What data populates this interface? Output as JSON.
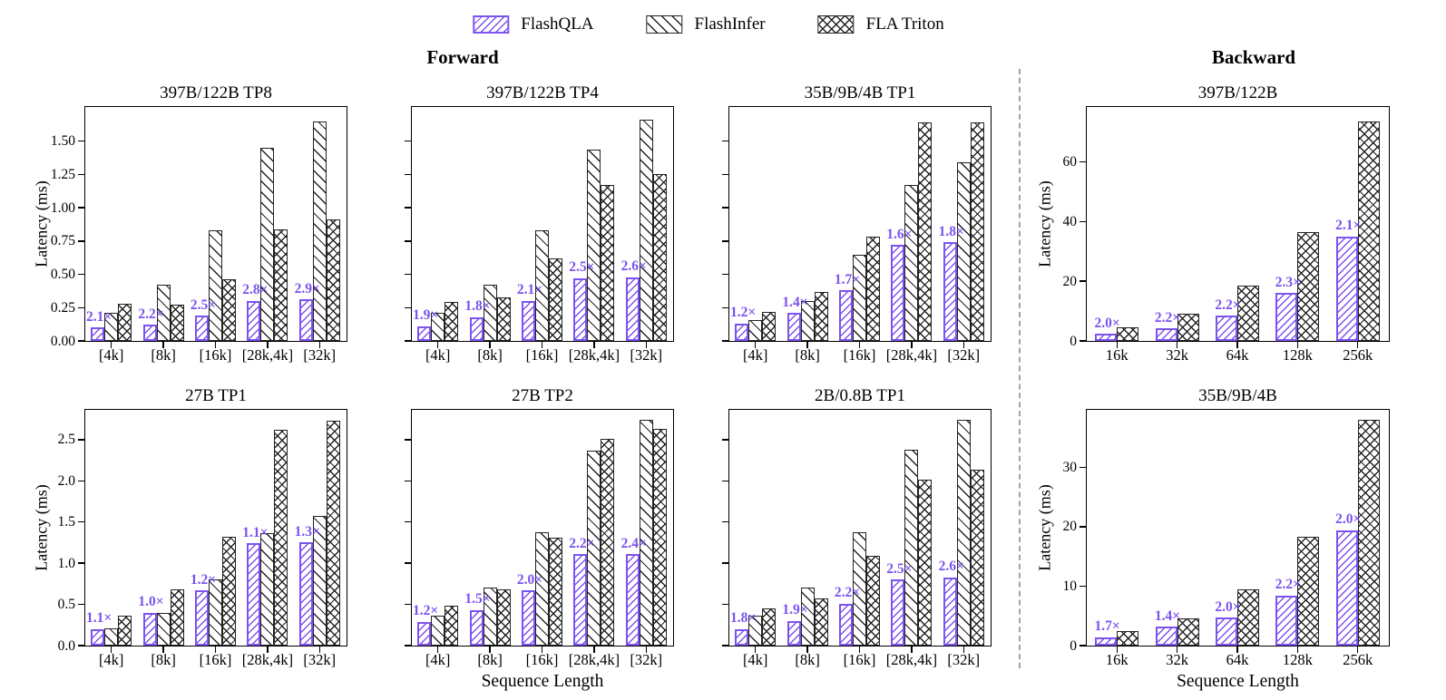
{
  "colors": {
    "accent": "#7C52F0",
    "hatch_black": "#222222",
    "divider": "#A3A3A3"
  },
  "legend": {
    "items": [
      {
        "label": "FlashQLA",
        "hatch": "diagonal-forward",
        "hatch_class": "hq"
      },
      {
        "label": "FlashInfer",
        "hatch": "diagonal-back",
        "hatch_class": "hi"
      },
      {
        "label": "FLA Triton",
        "hatch": "crosshatch",
        "hatch_class": "ht"
      }
    ]
  },
  "sections": {
    "forward_label": "Forward",
    "backward_label": "Backward"
  },
  "axis": {
    "ylabel": "Latency (ms)",
    "xlabel": "Sequence Length"
  },
  "chart_data": [
    {
      "id": "fwd-397b-tp8",
      "title": "397B/122B TP8",
      "section": "forward",
      "row": 0,
      "col": 0,
      "type": "bar",
      "categories": [
        "[4k]",
        "[8k]",
        "[16k]",
        "[28k,4k]",
        "[32k]"
      ],
      "series": [
        {
          "name": "FlashQLA",
          "values": [
            0.1,
            0.12,
            0.19,
            0.3,
            0.31
          ]
        },
        {
          "name": "FlashInfer",
          "values": [
            0.21,
            0.42,
            0.83,
            1.45,
            1.65
          ]
        },
        {
          "name": "FLA Triton",
          "values": [
            0.28,
            0.27,
            0.46,
            0.84,
            0.91
          ]
        }
      ],
      "annotations": [
        "2.1×",
        "2.2×",
        "2.5×",
        "2.8×",
        "2.9×"
      ],
      "ylim": [
        0,
        1.75
      ],
      "yticks": [
        0,
        0.25,
        0.5,
        0.75,
        1.0,
        1.25,
        1.5
      ],
      "ytick_labels": [
        "0.00",
        "0.25",
        "0.50",
        "0.75",
        "1.00",
        "1.25",
        "1.50"
      ],
      "show_ytick_labels": true,
      "show_ylabel": true,
      "show_xlabel": false
    },
    {
      "id": "fwd-397b-tp4",
      "title": "397B/122B TP4",
      "section": "forward",
      "row": 0,
      "col": 1,
      "type": "bar",
      "categories": [
        "[4k]",
        "[8k]",
        "[16k]",
        "[28k,4k]",
        "[32k]"
      ],
      "series": [
        {
          "name": "FlashQLA",
          "values": [
            0.11,
            0.18,
            0.3,
            0.47,
            0.48
          ]
        },
        {
          "name": "FlashInfer",
          "values": [
            0.21,
            0.42,
            0.83,
            1.44,
            1.66
          ]
        },
        {
          "name": "FLA Triton",
          "values": [
            0.29,
            0.33,
            0.62,
            1.17,
            1.25
          ]
        }
      ],
      "annotations": [
        "1.9×",
        "1.8×",
        "2.1×",
        "2.5×",
        "2.6×"
      ],
      "ylim": [
        0,
        1.75
      ],
      "yticks": [
        0,
        0.25,
        0.5,
        0.75,
        1.0,
        1.25,
        1.5
      ],
      "ytick_labels": [
        "0.00",
        "0.25",
        "0.50",
        "0.75",
        "1.00",
        "1.25",
        "1.50"
      ],
      "show_ytick_labels": false,
      "show_ylabel": false,
      "show_xlabel": false
    },
    {
      "id": "fwd-35b-tp1",
      "title": "35B/9B/4B TP1",
      "section": "forward",
      "row": 0,
      "col": 2,
      "type": "bar",
      "categories": [
        "[4k]",
        "[8k]",
        "[16k]",
        "[28k,4k]",
        "[32k]"
      ],
      "series": [
        {
          "name": "FlashQLA",
          "values": [
            0.13,
            0.21,
            0.38,
            0.72,
            0.74
          ]
        },
        {
          "name": "FlashInfer",
          "values": [
            0.16,
            0.3,
            0.65,
            1.17,
            1.34
          ]
        },
        {
          "name": "FLA Triton",
          "values": [
            0.22,
            0.37,
            0.78,
            1.64,
            1.64
          ]
        }
      ],
      "annotations": [
        "1.2×",
        "1.4×",
        "1.7×",
        "1.6×",
        "1.8×"
      ],
      "ylim": [
        0,
        1.75
      ],
      "yticks": [
        0,
        0.25,
        0.5,
        0.75,
        1.0,
        1.25,
        1.5
      ],
      "ytick_labels": [
        "0.00",
        "0.25",
        "0.50",
        "0.75",
        "1.00",
        "1.25",
        "1.50"
      ],
      "show_ytick_labels": false,
      "show_ylabel": false,
      "show_xlabel": false
    },
    {
      "id": "fwd-27b-tp1",
      "title": "27B TP1",
      "section": "forward",
      "row": 1,
      "col": 0,
      "type": "bar",
      "categories": [
        "[4k]",
        "[8k]",
        "[16k]",
        "[28k,4k]",
        "[32k]"
      ],
      "series": [
        {
          "name": "FlashQLA",
          "values": [
            0.2,
            0.4,
            0.67,
            1.24,
            1.25
          ]
        },
        {
          "name": "FlashInfer",
          "values": [
            0.21,
            0.4,
            0.8,
            1.37,
            1.57
          ]
        },
        {
          "name": "FLA Triton",
          "values": [
            0.36,
            0.68,
            1.32,
            2.62,
            2.73
          ]
        }
      ],
      "annotations": [
        "1.1×",
        "1.0×",
        "1.2×",
        "1.1×",
        "1.3×"
      ],
      "ylim": [
        0,
        2.85
      ],
      "yticks": [
        0,
        0.5,
        1.0,
        1.5,
        2.0,
        2.5
      ],
      "ytick_labels": [
        "0.0",
        "0.5",
        "1.0",
        "1.5",
        "2.0",
        "2.5"
      ],
      "show_ytick_labels": true,
      "show_ylabel": true,
      "show_xlabel": false
    },
    {
      "id": "fwd-27b-tp2",
      "title": "27B TP2",
      "section": "forward",
      "row": 1,
      "col": 1,
      "type": "bar",
      "categories": [
        "[4k]",
        "[8k]",
        "[16k]",
        "[28k,4k]",
        "[32k]"
      ],
      "series": [
        {
          "name": "FlashQLA",
          "values": [
            0.29,
            0.43,
            0.67,
            1.11,
            1.11
          ]
        },
        {
          "name": "FlashInfer",
          "values": [
            0.36,
            0.7,
            1.38,
            2.37,
            2.74
          ]
        },
        {
          "name": "FLA Triton",
          "values": [
            0.48,
            0.68,
            1.31,
            2.51,
            2.63
          ]
        }
      ],
      "annotations": [
        "1.2×",
        "1.5×",
        "2.0×",
        "2.2×",
        "2.4×"
      ],
      "ylim": [
        0,
        2.85
      ],
      "yticks": [
        0,
        0.5,
        1.0,
        1.5,
        2.0,
        2.5
      ],
      "ytick_labels": [
        "0.0",
        "0.5",
        "1.0",
        "1.5",
        "2.0",
        "2.5"
      ],
      "show_ytick_labels": false,
      "show_ylabel": false,
      "show_xlabel": true
    },
    {
      "id": "fwd-2b-tp1",
      "title": "2B/0.8B TP1",
      "section": "forward",
      "row": 1,
      "col": 2,
      "type": "bar",
      "categories": [
        "[4k]",
        "[8k]",
        "[16k]",
        "[28k,4k]",
        "[32k]"
      ],
      "series": [
        {
          "name": "FlashQLA",
          "values": [
            0.2,
            0.3,
            0.51,
            0.8,
            0.83
          ]
        },
        {
          "name": "FlashInfer",
          "values": [
            0.36,
            0.7,
            1.38,
            2.38,
            2.74
          ]
        },
        {
          "name": "FLA Triton",
          "values": [
            0.45,
            0.57,
            1.09,
            2.01,
            2.14
          ]
        }
      ],
      "annotations": [
        "1.8×",
        "1.9×",
        "2.2×",
        "2.5×",
        "2.6×"
      ],
      "ylim": [
        0,
        2.85
      ],
      "yticks": [
        0,
        0.5,
        1.0,
        1.5,
        2.0,
        2.5
      ],
      "ytick_labels": [
        "0.0",
        "0.5",
        "1.0",
        "1.5",
        "2.0",
        "2.5"
      ],
      "show_ytick_labels": false,
      "show_ylabel": false,
      "show_xlabel": false
    },
    {
      "id": "bwd-397b",
      "title": "397B/122B",
      "section": "backward",
      "row": 0,
      "col": 0,
      "type": "bar",
      "categories": [
        "16k",
        "32k",
        "64k",
        "128k",
        "256k"
      ],
      "series": [
        {
          "name": "FlashQLA",
          "values": [
            2.3,
            4.2,
            8.5,
            16.0,
            35.0
          ]
        },
        {
          "name": "FLA Triton",
          "values": [
            4.7,
            9.2,
            18.5,
            36.5,
            73.5
          ]
        }
      ],
      "annotations": [
        "2.0×",
        "2.2×",
        "2.2×",
        "2.3×",
        "2.1×"
      ],
      "ylim": [
        0,
        78
      ],
      "yticks": [
        0,
        20,
        40,
        60
      ],
      "ytick_labels": [
        "0",
        "20",
        "40",
        "60"
      ],
      "show_ytick_labels": true,
      "show_ylabel": true,
      "show_xlabel": false
    },
    {
      "id": "bwd-35b",
      "title": "35B/9B/4B",
      "section": "backward",
      "row": 1,
      "col": 0,
      "type": "bar",
      "categories": [
        "16k",
        "32k",
        "64k",
        "128k",
        "256k"
      ],
      "series": [
        {
          "name": "FlashQLA",
          "values": [
            1.4,
            3.2,
            4.7,
            8.4,
            19.4
          ]
        },
        {
          "name": "FLA Triton",
          "values": [
            2.4,
            4.6,
            9.5,
            18.3,
            38.0
          ]
        }
      ],
      "annotations": [
        "1.7×",
        "1.4×",
        "2.0×",
        "2.2×",
        "2.0×"
      ],
      "ylim": [
        0,
        39.5
      ],
      "yticks": [
        0,
        10,
        20,
        30
      ],
      "ytick_labels": [
        "0",
        "10",
        "20",
        "30"
      ],
      "show_ytick_labels": true,
      "show_ylabel": true,
      "show_xlabel": true
    }
  ]
}
